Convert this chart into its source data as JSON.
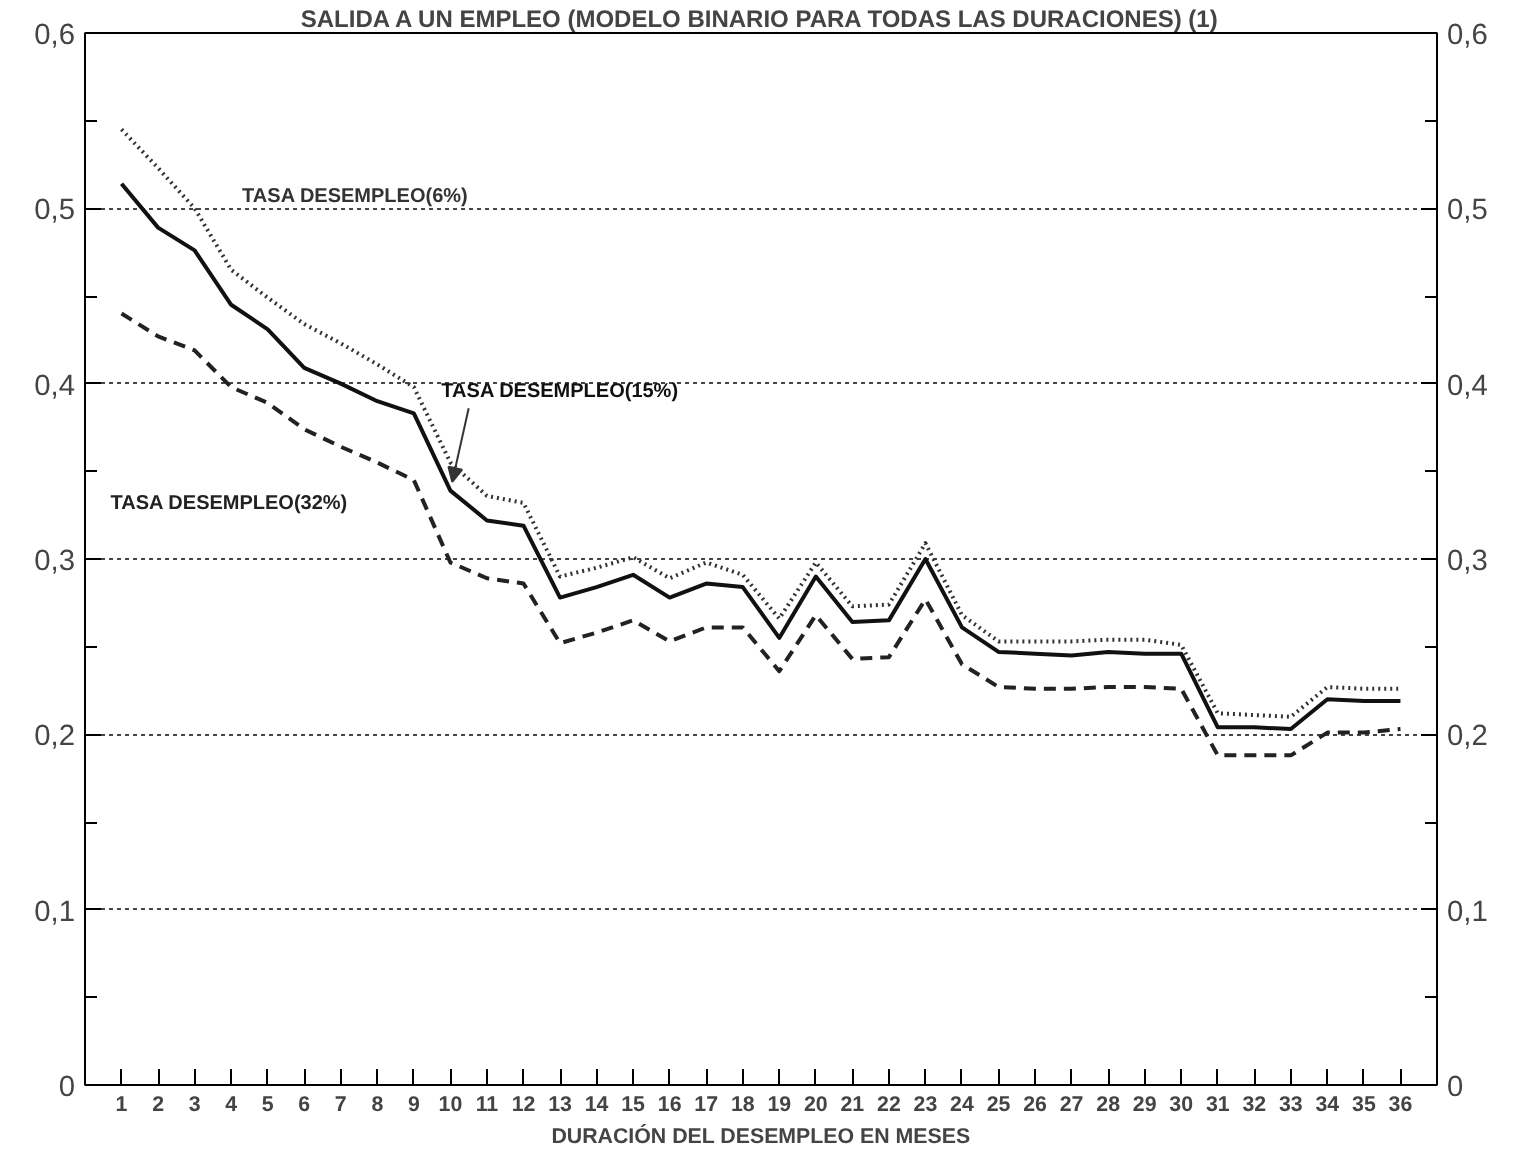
{
  "chart_data": {
    "type": "line",
    "title": "SALIDA A UN EMPLEO (MODELO BINARIO PARA TODAS LAS DURACIONES) (1)",
    "xlabel": "DURACIÓN DEL DESEMPLEO EN MESES",
    "x": [
      1,
      2,
      3,
      4,
      5,
      6,
      7,
      8,
      9,
      10,
      11,
      12,
      13,
      14,
      15,
      16,
      17,
      18,
      19,
      20,
      21,
      22,
      23,
      24,
      25,
      26,
      27,
      28,
      29,
      30,
      31,
      32,
      33,
      34,
      35,
      36
    ],
    "series": [
      {
        "name": "TASA DESEMPLEO(6%)",
        "color": "#333333",
        "line_style": "dotted",
        "values": [
          0.545,
          0.523,
          0.5,
          0.465,
          0.449,
          0.434,
          0.423,
          0.411,
          0.398,
          0.355,
          0.336,
          0.332,
          0.29,
          0.295,
          0.301,
          0.289,
          0.298,
          0.291,
          0.266,
          0.298,
          0.273,
          0.274,
          0.309,
          0.268,
          0.253,
          0.253,
          0.253,
          0.254,
          0.254,
          0.251,
          0.212,
          0.211,
          0.21,
          0.227,
          0.226,
          0.226
        ]
      },
      {
        "name": "TASA DESEMPLEO(15%)",
        "color": "#111111",
        "line_style": "solid",
        "values": [
          0.514,
          0.489,
          0.476,
          0.445,
          0.431,
          0.409,
          0.4,
          0.39,
          0.383,
          0.339,
          0.322,
          0.319,
          0.278,
          0.284,
          0.291,
          0.278,
          0.286,
          0.284,
          0.255,
          0.29,
          0.264,
          0.265,
          0.3,
          0.261,
          0.247,
          0.246,
          0.245,
          0.247,
          0.246,
          0.246,
          0.204,
          0.204,
          0.203,
          0.22,
          0.219,
          0.219
        ]
      },
      {
        "name": "TASA DESEMPLEO(32%)",
        "color": "#222222",
        "line_style": "dashed",
        "values": [
          0.44,
          0.427,
          0.419,
          0.398,
          0.389,
          0.374,
          0.364,
          0.355,
          0.345,
          0.298,
          0.289,
          0.286,
          0.252,
          0.258,
          0.265,
          0.253,
          0.261,
          0.261,
          0.236,
          0.268,
          0.243,
          0.244,
          0.277,
          0.24,
          0.227,
          0.226,
          0.226,
          0.227,
          0.227,
          0.226,
          0.188,
          0.188,
          0.188,
          0.201,
          0.201,
          0.203
        ]
      }
    ],
    "xlim": [
      0,
      37
    ],
    "xticks": [
      1,
      2,
      3,
      4,
      5,
      6,
      7,
      8,
      9,
      10,
      11,
      12,
      13,
      14,
      15,
      16,
      17,
      18,
      19,
      20,
      21,
      22,
      23,
      24,
      25,
      26,
      27,
      28,
      29,
      30,
      31,
      32,
      33,
      34,
      35,
      36
    ],
    "ylim": [
      0,
      0.6
    ],
    "yticks": [
      0,
      {
        "value": 0.1,
        "label": "0,1"
      },
      {
        "value": 0.2,
        "label": "0,2"
      },
      {
        "value": 0.3,
        "label": "0,3"
      },
      {
        "value": 0.4,
        "label": "0,4"
      },
      {
        "value": 0.5,
        "label": "0,5"
      },
      {
        "value": 0.6,
        "label": "0,6"
      }
    ],
    "y2lim": [
      0,
      0.6
    ],
    "y2ticks": [
      0,
      {
        "value": 0.1,
        "label": "0,1"
      },
      {
        "value": 0.2,
        "label": "0,2"
      },
      {
        "value": 0.3,
        "label": "0,3"
      },
      {
        "value": 0.4,
        "label": "0,4"
      },
      {
        "value": 0.5,
        "label": "0,5"
      },
      {
        "value": 0.6,
        "label": "0,6"
      }
    ],
    "grid": "y",
    "legend": false,
    "marker": "none"
  }
}
